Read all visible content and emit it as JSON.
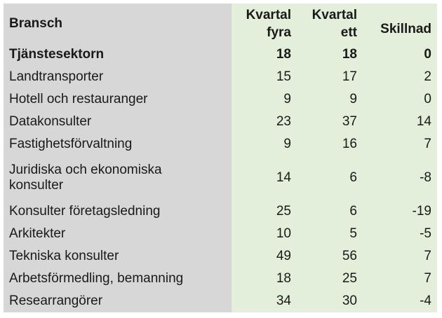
{
  "table": {
    "header": {
      "col1": "Bransch",
      "col2_line1": "Kvartal",
      "col2_line2": "fyra",
      "col3_line1": "Kvartal",
      "col3_line2": "ett",
      "col4": "Skillnad"
    },
    "rows": [
      {
        "label": "Tjänstesektorn",
        "q4": "18",
        "q1": "18",
        "diff": "0"
      },
      {
        "label": "Landtransporter",
        "q4": "15",
        "q1": "17",
        "diff": "2"
      },
      {
        "label": "Hotell och restauranger",
        "q4": "9",
        "q1": "9",
        "diff": "0"
      },
      {
        "label": "Datakonsulter",
        "q4": "23",
        "q1": "37",
        "diff": "14"
      },
      {
        "label": "Fastighetsförvaltning",
        "q4": "9",
        "q1": "16",
        "diff": "7"
      },
      {
        "label": "Juridiska och ekonomiska konsulter",
        "q4": "14",
        "q1": "6",
        "diff": "-8"
      },
      {
        "label": "Konsulter företagsledning",
        "q4": "25",
        "q1": "6",
        "diff": "-19"
      },
      {
        "label": "Arkitekter",
        "q4": "10",
        "q1": "5",
        "diff": "-5"
      },
      {
        "label": "Tekniska konsulter",
        "q4": "49",
        "q1": "56",
        "diff": "7"
      },
      {
        "label": "Arbetsförmedling, bemanning",
        "q4": "18",
        "q1": "25",
        "diff": "7"
      },
      {
        "label": "Researrangörer",
        "q4": "34",
        "q1": "30",
        "diff": "-4"
      }
    ]
  },
  "colors": {
    "label_column_bg": "#d7d7d7",
    "value_columns_bg": "#e3efdb",
    "text": "#191919",
    "page_bg": "#ffffff"
  },
  "chart_data": {
    "type": "table",
    "title": "",
    "columns": [
      "Bransch",
      "Kvartal fyra",
      "Kvartal ett",
      "Skillnad"
    ],
    "rows": [
      [
        "Tjänstesektorn",
        18,
        18,
        0
      ],
      [
        "Landtransporter",
        15,
        17,
        2
      ],
      [
        "Hotell och restauranger",
        9,
        9,
        0
      ],
      [
        "Datakonsulter",
        23,
        37,
        14
      ],
      [
        "Fastighetsförvaltning",
        9,
        16,
        7
      ],
      [
        "Juridiska och ekonomiska konsulter",
        14,
        6,
        -8
      ],
      [
        "Konsulter företagsledning",
        25,
        6,
        -19
      ],
      [
        "Arkitekter",
        10,
        5,
        -5
      ],
      [
        "Tekniska konsulter",
        49,
        56,
        7
      ],
      [
        "Arbetsförmedling, bemanning",
        18,
        25,
        7
      ],
      [
        "Researrangörer",
        34,
        30,
        -4
      ]
    ],
    "layout_hints": {
      "bold_rows": [
        "Tjänstesektorn"
      ],
      "label_column_bg": "#d7d7d7",
      "value_columns_bg": "#e3efdb",
      "numeric_alignment": "right"
    }
  }
}
